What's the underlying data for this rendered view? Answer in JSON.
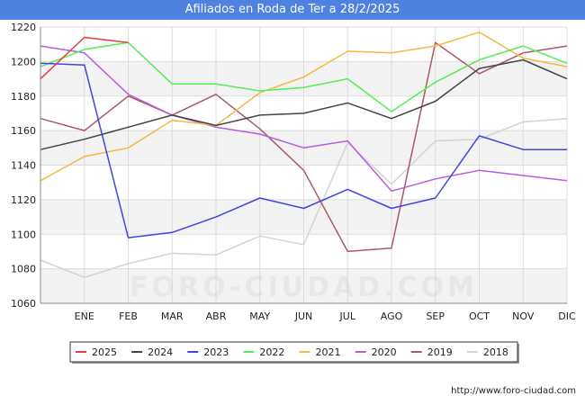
{
  "title": "Afiliados en Roda de Ter a 28/2/2025",
  "footer_url": "http://www.foro-ciudad.com",
  "watermark": "FORO-CIUDAD.COM",
  "chart_data": {
    "type": "line",
    "title": "Afiliados en Roda de Ter a 28/2/2025",
    "categories": [
      "",
      "ENE",
      "FEB",
      "MAR",
      "ABR",
      "MAY",
      "JUN",
      "JUL",
      "AGO",
      "SEP",
      "OCT",
      "NOV",
      "DIC"
    ],
    "ylim": [
      1060,
      1220
    ],
    "yticks": [
      1060,
      1080,
      1100,
      1120,
      1140,
      1160,
      1180,
      1200,
      1220
    ],
    "grid": true,
    "legend_position": "bottom",
    "series": [
      {
        "name": "2025",
        "color": "#e63d3d",
        "values": [
          1190,
          1214,
          1211,
          null,
          null,
          null,
          null,
          null,
          null,
          null,
          null,
          null,
          null
        ]
      },
      {
        "name": "2024",
        "color": "#444444",
        "values": [
          1149,
          1155,
          1162,
          1169,
          1163,
          1169,
          1170,
          1176,
          1167,
          1177,
          1196,
          1201,
          1190
        ]
      },
      {
        "name": "2023",
        "color": "#4444dd",
        "values": [
          1199,
          1198,
          1098,
          1101,
          1110,
          1121,
          1115,
          1126,
          1115,
          1121,
          1157,
          1149,
          1149
        ]
      },
      {
        "name": "2022",
        "color": "#55ee55",
        "values": [
          1197,
          1207,
          1211,
          1187,
          1187,
          1183,
          1185,
          1190,
          1171,
          1188,
          1201,
          1209,
          1199
        ]
      },
      {
        "name": "2021",
        "color": "#f5b942",
        "values": [
          1131,
          1145,
          1150,
          1166,
          1163,
          1182,
          1191,
          1206,
          1205,
          1209,
          1217,
          1202,
          1197
        ]
      },
      {
        "name": "2020",
        "color": "#b45ee0",
        "values": [
          1209,
          1205,
          1181,
          1169,
          1162,
          1158,
          1150,
          1154,
          1125,
          1132,
          1137,
          1134,
          1131
        ]
      },
      {
        "name": "2019",
        "color": "#a85a6a",
        "values": [
          1167,
          1160,
          1180,
          1169,
          1181,
          1161,
          1137,
          1090,
          1092,
          1211,
          1193,
          1205,
          1209
        ]
      },
      {
        "name": "2018",
        "color": "#d4d4d4",
        "values": [
          1085,
          1075,
          1083,
          1089,
          1088,
          1099,
          1094,
          1153,
          1129,
          1154,
          1155,
          1165,
          1167
        ]
      }
    ]
  }
}
